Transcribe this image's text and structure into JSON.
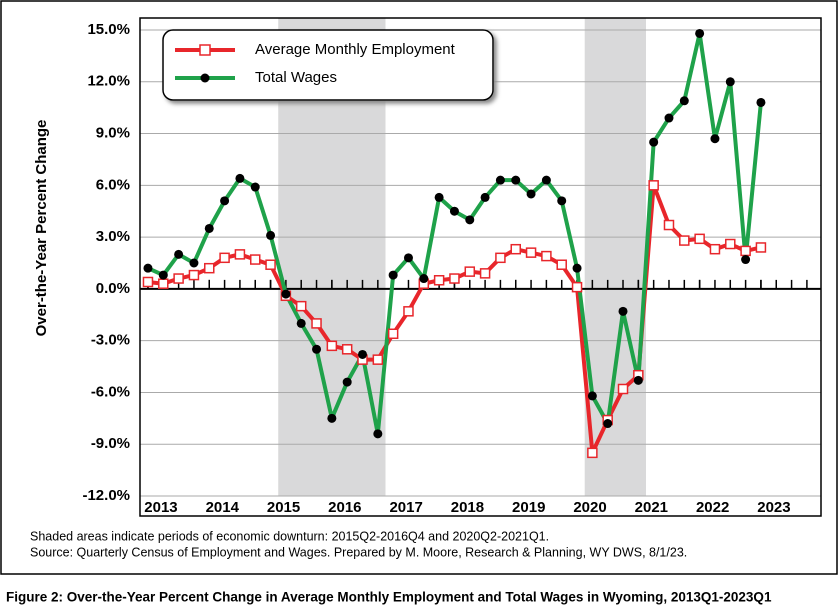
{
  "chart_data": {
    "type": "line",
    "y_label": "Over-the-Year Percent Change",
    "x": [
      2013,
      2013.25,
      2013.5,
      2013.75,
      2014,
      2014.25,
      2014.5,
      2014.75,
      2015,
      2015.25,
      2015.5,
      2015.75,
      2016,
      2016.25,
      2016.5,
      2016.75,
      2017,
      2017.25,
      2017.5,
      2017.75,
      2018,
      2018.25,
      2018.5,
      2018.75,
      2019,
      2019.25,
      2019.5,
      2019.75,
      2020,
      2020.25,
      2020.5,
      2020.75,
      2021,
      2021.25,
      2021.5,
      2021.75,
      2022,
      2022.25,
      2022.5,
      2022.75,
      2023
    ],
    "series": [
      {
        "name": "Average Monthly Employment",
        "color": "#e8262b",
        "marker": "square",
        "values": [
          0.4,
          0.3,
          0.6,
          0.8,
          1.2,
          1.8,
          2.0,
          1.7,
          1.4,
          -0.4,
          -1.0,
          -2.0,
          -3.3,
          -3.5,
          -4.1,
          -4.1,
          -2.6,
          -1.3,
          0.3,
          0.5,
          0.6,
          1.0,
          0.9,
          1.8,
          2.3,
          2.1,
          1.9,
          1.4,
          0.1,
          -9.5,
          -7.6,
          -5.8,
          -5.0,
          6.0,
          3.7,
          2.8,
          2.9,
          2.3,
          2.6,
          2.2,
          2.4
        ]
      },
      {
        "name": "Total Wages",
        "color": "#1fa24a",
        "marker": "circle",
        "values": [
          1.2,
          0.8,
          2.0,
          1.5,
          3.5,
          5.1,
          6.4,
          5.9,
          3.1,
          -0.3,
          -2.0,
          -3.5,
          -7.5,
          -5.4,
          -3.8,
          -8.4,
          0.8,
          1.8,
          0.6,
          5.3,
          4.5,
          4.0,
          5.3,
          6.3,
          6.3,
          5.5,
          6.3,
          5.1,
          1.2,
          -6.2,
          -7.8,
          -1.3,
          -5.3,
          8.5,
          9.9,
          10.9,
          14.8,
          8.7,
          12.0,
          1.7,
          10.8
        ]
      }
    ],
    "shaded": [
      {
        "start": 2015.25,
        "end": 2016.75
      },
      {
        "start": 2020.25,
        "end": 2021
      }
    ],
    "xlim": [
      2012.87,
      2023.98
    ],
    "xticks": [
      2013,
      2014,
      2015,
      2016,
      2017,
      2018,
      2019,
      2020,
      2021,
      2022,
      2023
    ],
    "ylim": [
      -12,
      15
    ],
    "yticks": [
      {
        "value": -12,
        "label": "-12.0%"
      },
      {
        "value": -9,
        "label": "-9.0%"
      },
      {
        "value": -6,
        "label": "-6.0%"
      },
      {
        "value": -3,
        "label": "-3.0%"
      },
      {
        "value": 0,
        "label": "0.0%"
      },
      {
        "value": 3,
        "label": "3.0%"
      },
      {
        "value": 6,
        "label": "6.0%"
      },
      {
        "value": 9,
        "label": "9.0%"
      },
      {
        "value": 12,
        "label": "12.0%"
      },
      {
        "value": 15,
        "label": "15.0%"
      }
    ],
    "grid": true,
    "legend": "upper left",
    "notes": [
      "Shaded areas indicate periods of economic downturn: 2015Q2-2016Q4 and 2020Q2-2021Q1.",
      "Source: Quarterly Census of Employment and Wages. Prepared by M. Moore, Research & Planning, WY DWS, 8/1/23."
    ],
    "caption": "Figure 2: Over-the-Year Percent Change in Average Monthly Employment and Total Wages in Wyoming, 2013Q1-2023Q1"
  }
}
